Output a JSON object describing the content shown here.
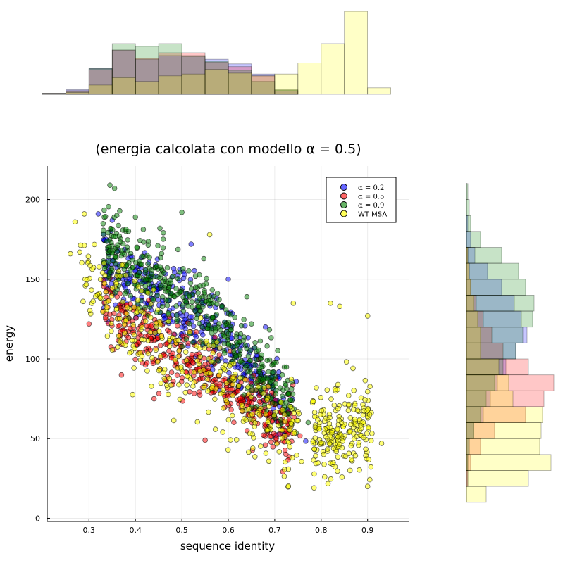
{
  "chart_data": {
    "type": "scatter",
    "title": "(energia calcolata con modello α = 0.5)",
    "xlabel": "sequence identity",
    "ylabel": "energy",
    "xlim": [
      0.21,
      0.99
    ],
    "ylim": [
      -2,
      221
    ],
    "xticks": [
      "0.3",
      "0.4",
      "0.5",
      "0.6",
      "0.7",
      "0.8",
      "0.9"
    ],
    "yticks": [
      "0",
      "50",
      "100",
      "150",
      "200"
    ],
    "grid": true,
    "legend_position": "top-right",
    "series": [
      {
        "name": "α = 0.2",
        "color": "#0000ff",
        "alpha": 0.5,
        "center": [
          [
            0.3,
            165
          ],
          [
            0.45,
            140
          ],
          [
            0.6,
            108
          ],
          [
            0.72,
            68
          ],
          [
            0.85,
            50
          ]
        ],
        "spread": 12,
        "outliers": [
          [
            0.32,
            191
          ],
          [
            0.35,
            187
          ],
          [
            0.52,
            172
          ],
          [
            0.6,
            150
          ],
          [
            0.68,
            120
          ]
        ]
      },
      {
        "name": "α = 0.5",
        "color": "#ff0000",
        "alpha": 0.5,
        "center": [
          [
            0.3,
            140
          ],
          [
            0.45,
            108
          ],
          [
            0.6,
            82
          ],
          [
            0.72,
            57
          ],
          [
            0.8,
            52
          ]
        ],
        "spread": 10,
        "outliers": [
          [
            0.3,
            122
          ],
          [
            0.37,
            90
          ],
          [
            0.44,
            75
          ],
          [
            0.55,
            49
          ],
          [
            0.68,
            46
          ]
        ]
      },
      {
        "name": "α = 0.9",
        "color": "#008000",
        "alpha": 0.5,
        "center": [
          [
            0.3,
            175
          ],
          [
            0.45,
            150
          ],
          [
            0.6,
            116
          ],
          [
            0.72,
            75
          ],
          [
            0.78,
            62
          ]
        ],
        "spread": 12,
        "outliers": [
          [
            0.345,
            209
          ],
          [
            0.355,
            207
          ],
          [
            0.36,
            190
          ],
          [
            0.4,
            189
          ],
          [
            0.5,
            192
          ],
          [
            0.64,
            139
          ],
          [
            0.65,
            122
          ]
        ]
      },
      {
        "name": "WT MSA",
        "color": "#ffff00",
        "alpha": 0.55,
        "center": [
          [
            0.3,
            150
          ],
          [
            0.45,
            110
          ],
          [
            0.6,
            80
          ],
          [
            0.72,
            52
          ],
          [
            0.9,
            55
          ]
        ],
        "spread": 14,
        "outliers": [
          [
            0.27,
            186
          ],
          [
            0.29,
            191
          ],
          [
            0.26,
            166
          ],
          [
            0.28,
            167
          ],
          [
            0.56,
            178
          ],
          [
            0.74,
            135
          ],
          [
            0.82,
            135
          ],
          [
            0.84,
            133
          ],
          [
            0.9,
            127
          ],
          [
            0.93,
            47
          ],
          [
            0.9,
            20
          ]
        ]
      }
    ],
    "marginal_x_hist": {
      "bin_edges": [
        0.2,
        0.25,
        0.3,
        0.35,
        0.4,
        0.45,
        0.5,
        0.55,
        0.6,
        0.65,
        0.7,
        0.75,
        0.8,
        0.85,
        0.9,
        0.95
      ],
      "counts": [
        [
          1,
          5,
          28,
          48,
          38,
          42,
          41,
          38,
          33,
          22,
          4,
          0,
          0,
          0,
          0
        ],
        [
          1,
          4,
          27,
          48,
          39,
          45,
          45,
          35,
          30,
          20,
          4,
          0,
          0,
          0,
          0
        ],
        [
          1,
          3,
          28,
          55,
          52,
          55,
          42,
          36,
          26,
          14,
          5,
          0,
          0,
          0,
          0
        ],
        [
          0,
          2,
          10,
          18,
          14,
          20,
          22,
          27,
          23,
          20,
          22,
          34,
          55,
          90,
          7
        ]
      ]
    },
    "marginal_y_hist": {
      "bin_edges": [
        10,
        20,
        30,
        40,
        50,
        60,
        70,
        80,
        90,
        100,
        110,
        120,
        130,
        140,
        150,
        160,
        170,
        180,
        190,
        200,
        210
      ],
      "counts": [
        [
          0,
          1,
          1,
          2,
          5,
          12,
          17,
          22,
          28,
          35,
          43,
          39,
          34,
          25,
          15,
          6,
          3,
          1,
          0,
          0
        ],
        [
          0,
          1,
          3,
          10,
          20,
          42,
          55,
          62,
          44,
          26,
          18,
          12,
          7,
          3,
          2,
          1,
          0,
          0,
          0,
          0
        ],
        [
          0,
          0,
          1,
          2,
          5,
          10,
          14,
          20,
          26,
          35,
          40,
          47,
          48,
          42,
          37,
          25,
          10,
          3,
          2,
          1
        ],
        [
          14,
          44,
          60,
          52,
          53,
          54,
          33,
          30,
          23,
          10,
          10,
          8,
          5,
          3,
          2,
          1,
          0,
          0,
          0,
          0
        ]
      ]
    }
  }
}
